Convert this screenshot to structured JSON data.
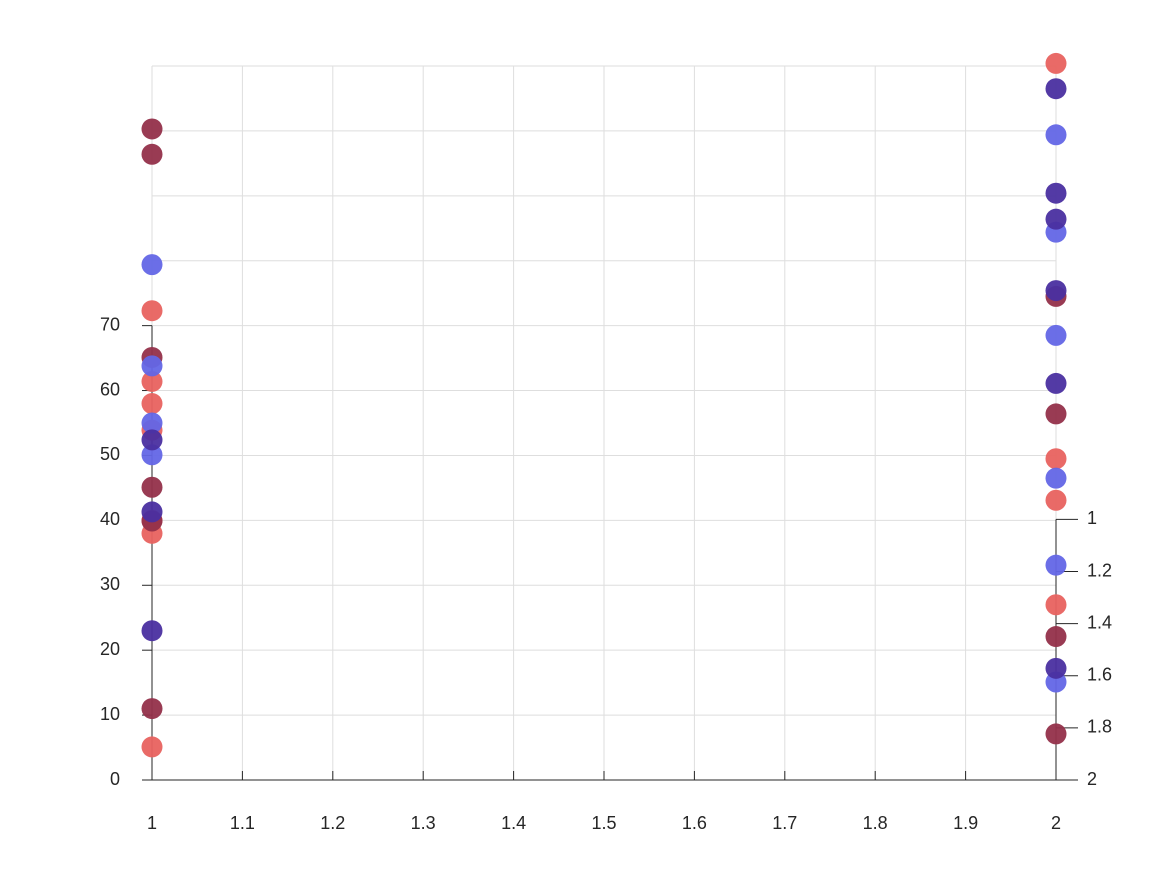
{
  "chart_data": {
    "type": "scatter",
    "xlim": [
      1,
      2
    ],
    "xticks": [
      1,
      1.1,
      1.2,
      1.3,
      1.4,
      1.5,
      1.6,
      1.7,
      1.8,
      1.9,
      2
    ],
    "ylim": [
      0,
      110
    ],
    "yticks": [
      0,
      10,
      20,
      30,
      40,
      50,
      60,
      70
    ],
    "ygrid": [
      0,
      10,
      20,
      30,
      40,
      50,
      60,
      70,
      80,
      90,
      100,
      110
    ],
    "y2lim": [
      2,
      -0.74
    ],
    "y2ticks": [
      1,
      1.2,
      1.4,
      1.6,
      1.8,
      2
    ],
    "grid": true,
    "series": [
      {
        "color": "#e8625f",
        "x": [
          1,
          1,
          1,
          1,
          1,
          1,
          1,
          2,
          2,
          2,
          2
        ],
        "values": [
          5.1,
          38.0,
          40.0,
          53.9,
          58.0,
          61.4,
          72.3,
          110.4,
          49.5,
          43.1,
          27.0
        ]
      },
      {
        "color": "#93304a",
        "x": [
          1,
          1,
          1,
          1,
          1,
          1,
          2,
          2,
          2,
          2
        ],
        "values": [
          11.0,
          45.1,
          39.9,
          65.1,
          96.4,
          100.3,
          74.5,
          56.4,
          22.1,
          7.1
        ]
      },
      {
        "color": "#6366e6",
        "x": [
          1,
          1,
          1,
          1,
          2,
          2,
          2,
          2,
          2,
          2
        ],
        "values": [
          50.1,
          55.0,
          63.8,
          79.4,
          99.4,
          84.4,
          68.5,
          46.5,
          33.1,
          15.1
        ]
      },
      {
        "color": "#4a2fa0",
        "x": [
          1,
          1,
          1,
          2,
          2,
          2,
          2,
          2,
          2
        ],
        "values": [
          23.0,
          41.3,
          52.4,
          106.5,
          90.4,
          86.4,
          75.4,
          61.1,
          17.2
        ]
      }
    ]
  }
}
